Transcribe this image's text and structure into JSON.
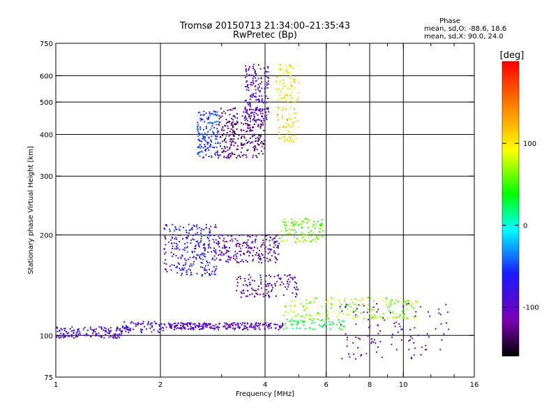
{
  "chart_data": {
    "type": "scatter",
    "title": "Tromsø 20150713 21:34:00–21:35:43",
    "subtitle": "RwPretec (Bp)",
    "phase_info": {
      "heading": "Phase",
      "line_o": "mean, sd,O: -88.6, 18.6",
      "line_x": "mean, sd,X:  90.0, 24.0"
    },
    "xlabel": "Frequency [MHz]",
    "ylabel": "Stationary phase Virtual Height [km]",
    "x_scale": "log",
    "y_scale": "log",
    "xlim": [
      1,
      16
    ],
    "ylim": [
      75,
      750
    ],
    "x_ticks": [
      1,
      2,
      4,
      6,
      8,
      10,
      16
    ],
    "x_minor_ticks": [
      3,
      5,
      7,
      9,
      12,
      14
    ],
    "y_ticks": [
      75,
      100,
      200,
      300,
      400,
      500,
      600,
      750
    ],
    "x_gridlines": [
      2,
      4,
      6,
      8,
      10
    ],
    "y_gridlines": [
      100,
      200,
      300,
      400,
      500,
      600
    ],
    "grid": true,
    "colorbar": {
      "label": "[deg]",
      "min": -160,
      "max": 200,
      "ticks": [
        100,
        0,
        -100
      ]
    },
    "traces": [
      {
        "name": "",
        "x_range": [
          1.0,
          1.55
        ],
        "h": [
          98,
          106
        ],
        "phase": -90,
        "count": 140
      },
      {
        "name": "",
        "x_range": [
          1.55,
          2.05
        ],
        "h": [
          102,
          110
        ],
        "phase": -80,
        "count": 70
      },
      {
        "name": "",
        "x_range": [
          2.05,
          4.5
        ],
        "h": [
          104,
          109
        ],
        "phase": -100,
        "count": 260
      },
      {
        "name": "",
        "x_range": [
          4.5,
          6.8
        ],
        "h": [
          104,
          112
        ],
        "phase": 30,
        "count": 70
      },
      {
        "name": "",
        "x_range": [
          2.05,
          2.9
        ],
        "h": [
          150,
          215
        ],
        "phase": -70,
        "count": 260
      },
      {
        "name": "",
        "x_range": [
          2.9,
          4.4
        ],
        "h": [
          165,
          200
        ],
        "phase": -110,
        "count": 200
      },
      {
        "name": "",
        "x_range": [
          4.4,
          5.9
        ],
        "h": [
          190,
          225
        ],
        "phase": 60,
        "count": 110
      },
      {
        "name": "",
        "x_range": [
          3.3,
          5.0
        ],
        "h": [
          130,
          152
        ],
        "phase": -110,
        "count": 120
      },
      {
        "name": "",
        "x_range": [
          4.5,
          11.0
        ],
        "h": [
          112,
          130
        ],
        "phase": 70,
        "count": 190
      },
      {
        "name": "",
        "x_range": [
          2.55,
          2.95
        ],
        "h": [
          340,
          470
        ],
        "phase": -55,
        "count": 160
      },
      {
        "name": "",
        "x_range": [
          2.95,
          4.0
        ],
        "h": [
          340,
          480
        ],
        "phase": -125,
        "count": 280
      },
      {
        "name": "",
        "x_range": [
          3.5,
          4.1
        ],
        "h": [
          430,
          650
        ],
        "phase": -95,
        "count": 160
      },
      {
        "name": "",
        "x_range": [
          4.3,
          5.0
        ],
        "h": [
          380,
          650
        ],
        "phase": 105,
        "count": 140
      },
      {
        "name": "",
        "x_range": [
          6.5,
          13.5
        ],
        "h": [
          85,
          125
        ],
        "phase": -100,
        "count": 110
      }
    ]
  }
}
